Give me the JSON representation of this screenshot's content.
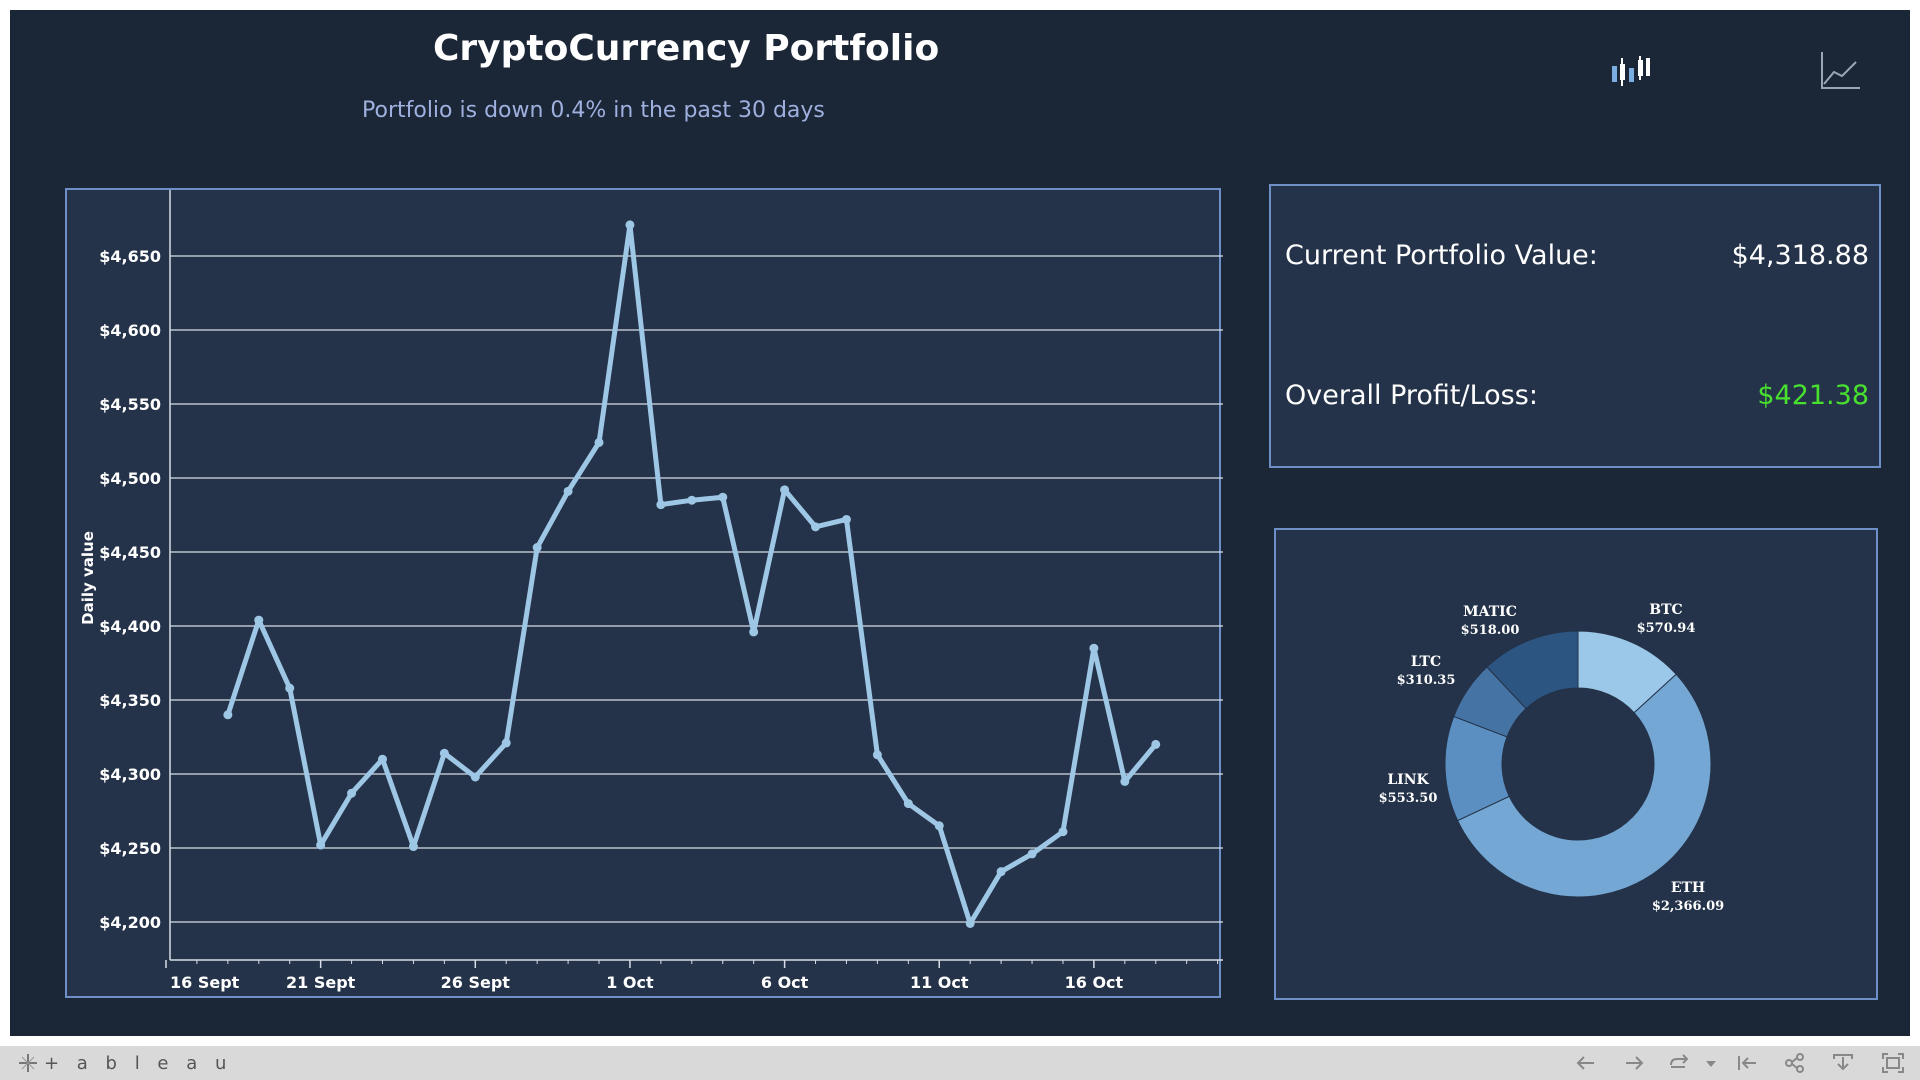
{
  "header": {
    "title": "CryptoCurrency Portfolio",
    "subtitle": "Portfolio is down 0.4% in the past 30 days"
  },
  "toolbar_icons": [
    "candlestick-chart-icon",
    "line-chart-icon"
  ],
  "kpi": {
    "current_label": "Current Portfolio Value:",
    "current_value": "$4,318.88",
    "pl_label": "Overall Profit/Loss:",
    "pl_value": "$421.38",
    "pl_color": "#48e02e"
  },
  "footer": {
    "brand": "+ a b l e a u",
    "icons": [
      "undo-icon",
      "redo-icon",
      "revert-icon",
      "dropdown-icon",
      "reset-icon",
      "share-icon",
      "download-icon",
      "fullscreen-icon"
    ]
  },
  "colors": {
    "background": "#1b2637",
    "panel": "#243349",
    "panel_border": "#6f8fc7",
    "line": "#9ec7e6"
  },
  "chart_data": [
    {
      "type": "line",
      "ylabel": "Daily value",
      "ylim": [
        4175,
        4695
      ],
      "yticks": [
        4200,
        4250,
        4300,
        4350,
        4400,
        4450,
        4500,
        4550,
        4600,
        4650
      ],
      "ytick_labels": [
        "$4,200",
        "$4,250",
        "$4,300",
        "$4,350",
        "$4,400",
        "$4,450",
        "$4,500",
        "$4,550",
        "$4,600",
        "$4,650"
      ],
      "xtick_labels": [
        "16 Sept",
        "21 Sept",
        "26 Sept",
        "1 Oct",
        "6 Oct",
        "11 Oct",
        "16 Oct"
      ],
      "xtick_day_index": [
        0,
        5,
        10,
        15,
        20,
        25,
        30
      ],
      "x": [
        "18 Sept",
        "19 Sept",
        "20 Sept",
        "21 Sept",
        "22 Sept",
        "23 Sept",
        "24 Sept",
        "25 Sept",
        "26 Sept",
        "27 Sept",
        "28 Sept",
        "29 Sept",
        "30 Sept",
        "1 Oct",
        "2 Oct",
        "3 Oct",
        "4 Oct",
        "5 Oct",
        "6 Oct",
        "7 Oct",
        "8 Oct",
        "9 Oct",
        "10 Oct",
        "11 Oct",
        "12 Oct",
        "13 Oct",
        "14 Oct",
        "15 Oct",
        "16 Oct",
        "17 Oct",
        "18 Oct"
      ],
      "x_day_index": [
        2,
        3,
        4,
        5,
        6,
        7,
        8,
        9,
        10,
        11,
        12,
        13,
        14,
        15,
        16,
        17,
        18,
        19,
        20,
        21,
        22,
        23,
        24,
        25,
        26,
        27,
        28,
        29,
        30,
        31,
        32
      ],
      "values": [
        4340,
        4404,
        4358,
        4252,
        4287,
        4310,
        4251,
        4314,
        4298,
        4321,
        4453,
        4491,
        4524,
        4671,
        4482,
        4485,
        4487,
        4396,
        4492,
        4467,
        4472,
        4313,
        4280,
        4265,
        4199,
        4234,
        4246,
        4261,
        4385,
        4295,
        4320
      ],
      "grid": true
    },
    {
      "type": "pie",
      "donut": true,
      "slices": [
        {
          "label": "BTC",
          "value": 570.94,
          "value_label": "$570.94",
          "color": "#9bc7e8"
        },
        {
          "label": "ETH",
          "value": 2366.09,
          "value_label": "$2,366.09",
          "color": "#74a7d3"
        },
        {
          "label": "LINK",
          "value": 553.5,
          "value_label": "$553.50",
          "color": "#5b8fc1"
        },
        {
          "label": "LTC",
          "value": 310.35,
          "value_label": "$310.35",
          "color": "#4574a4"
        },
        {
          "label": "MATIC",
          "value": 518.0,
          "value_label": "$518.00",
          "color": "#2d5582"
        }
      ]
    }
  ]
}
